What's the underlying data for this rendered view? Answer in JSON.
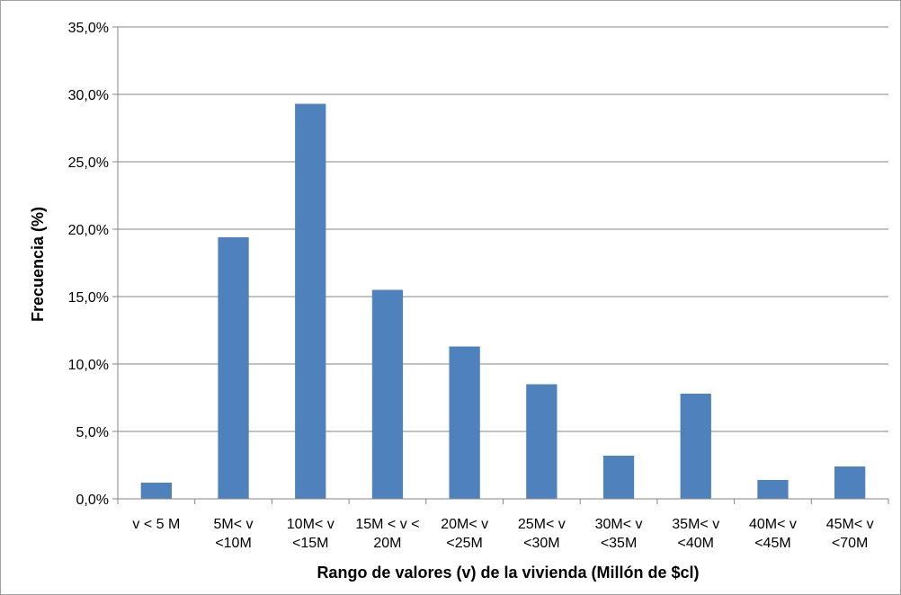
{
  "chart_data": {
    "type": "bar",
    "categories": [
      [
        "v < 5 M"
      ],
      [
        "5M< v",
        "<10M"
      ],
      [
        "10M< v",
        "<15M"
      ],
      [
        "15M < v <",
        "20M"
      ],
      [
        "20M< v",
        "<25M"
      ],
      [
        "25M< v",
        "<30M"
      ],
      [
        "30M< v",
        "<35M"
      ],
      [
        "35M< v",
        "<40M"
      ],
      [
        "40M< v",
        "<45M"
      ],
      [
        "45M< v",
        "<70M"
      ]
    ],
    "values": [
      1.2,
      19.4,
      29.3,
      15.5,
      11.3,
      8.5,
      3.2,
      7.8,
      1.4,
      2.4
    ],
    "xlabel": "Rango de valores (v) de la vivienda (Millón de $cl)",
    "ylabel": "Frecuencia  (%)",
    "ylim": [
      0,
      35
    ],
    "yticks": [
      0,
      5,
      10,
      15,
      20,
      25,
      30,
      35
    ],
    "ytick_labels": [
      "0,0%",
      "5,0%",
      "10,0%",
      "15,0%",
      "20,0%",
      "25,0%",
      "30,0%",
      "35,0%"
    ],
    "grid": true,
    "legend": "none",
    "colors": {
      "bar": "#4F81BD",
      "grid": "#868686",
      "axis": "#868686",
      "frame": "#a0a0a0"
    }
  }
}
